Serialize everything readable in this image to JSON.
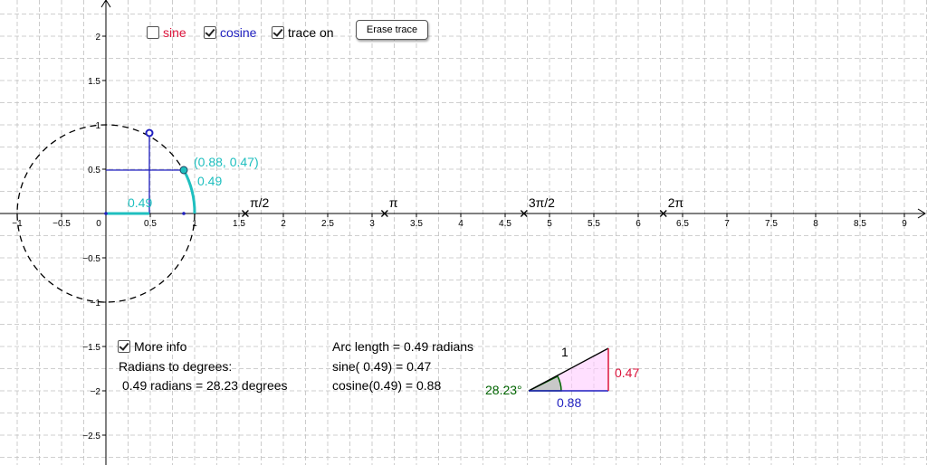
{
  "controls": {
    "sine": {
      "label": "sine",
      "checked": false,
      "color": "#dc143c"
    },
    "cosine": {
      "label": "cosine",
      "checked": true,
      "color": "#1f1fbf"
    },
    "trace": {
      "label": "trace on",
      "checked": true
    },
    "erase_button": "Erase trace"
  },
  "axes": {
    "x_ticks": [
      "−1",
      "−0.5",
      "0",
      "0.5",
      "1",
      "1.5",
      "2",
      "2.5",
      "3",
      "3.5",
      "4",
      "4.5",
      "5",
      "5.5",
      "6",
      "6.5",
      "7",
      "7.5",
      "8",
      "8.5",
      "9"
    ],
    "y_ticks": [
      "2",
      "1.5",
      "1",
      "0.5",
      "−0.5",
      "−1",
      "−1.5",
      "−2",
      "−2.5"
    ],
    "x_range": [
      -1.1,
      9.2
    ],
    "y_range": [
      -2.8,
      2.4
    ],
    "grid": true
  },
  "pi_marks": [
    {
      "label": "π/2",
      "x": 1.5708
    },
    {
      "label": "π",
      "x": 3.1416
    },
    {
      "label": "3π/2",
      "x": 4.7124
    },
    {
      "label": "2π",
      "x": 6.2832
    }
  ],
  "unit_circle": {
    "angle": 0.49,
    "point": [
      0.88,
      0.47
    ],
    "point_label": "(0.88, 0.47)",
    "arc_label": "0.49",
    "arc_length_label": "0.49",
    "cos_trace_point": [
      0.49,
      0.88
    ],
    "colors": {
      "accent": "#1fbfbf",
      "guide": "#1f1fbf"
    }
  },
  "info": {
    "more_info": {
      "label": "More info",
      "checked": true
    },
    "radians_to_degrees": "Radians to degrees:",
    "conversion": "0.49 radians = 28.23 degrees",
    "arc_length": "Arc length = 0.49 radians",
    "sine_line": "sine( 0.49) = 0.47",
    "cosine_line": "cosine(0.49) = 0.88"
  },
  "triangle": {
    "hypotenuse": "1",
    "opposite": "0.47",
    "adjacent": "0.88",
    "angle": "28.23°",
    "colors": {
      "opposite": "#dc143c",
      "adjacent": "#1f1fbf",
      "angle": "#006400",
      "fill": "#ffccff"
    }
  }
}
